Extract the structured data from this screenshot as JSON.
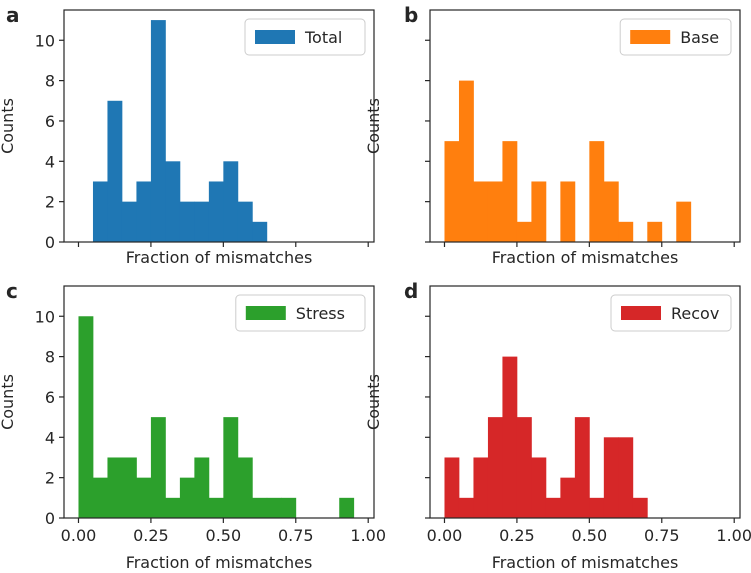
{
  "figure": {
    "shared_ylabel": "Counts",
    "shared_xlabel": "Fraction of mismatches"
  },
  "chart_data": [
    {
      "panel": "a",
      "type": "bar",
      "title": "",
      "legend": "Total",
      "legend_position": "top-right",
      "color": "#1f77b4",
      "xlabel": "Fraction of mismatches",
      "ylabel": "Counts",
      "xlim": [
        -0.05,
        1.02
      ],
      "ylim": [
        0,
        11.5
      ],
      "xticks": [
        0.0,
        0.25,
        0.5,
        0.75,
        1.0
      ],
      "xtick_labels": [],
      "yticks": [
        0,
        2,
        4,
        6,
        8,
        10
      ],
      "ytick_labels": [
        "0",
        "2",
        "4",
        "6",
        "8",
        "10"
      ],
      "bin_width": 0.05,
      "bin_starts": [
        0.05,
        0.1,
        0.15,
        0.2,
        0.25,
        0.3,
        0.35,
        0.4,
        0.45,
        0.5,
        0.55,
        0.6
      ],
      "values": [
        3,
        7,
        2,
        3,
        11,
        4,
        2,
        2,
        3,
        4,
        2,
        1
      ]
    },
    {
      "panel": "b",
      "type": "bar",
      "title": "",
      "legend": "Base",
      "legend_position": "top-right",
      "color": "#ff7f0e",
      "xlabel": "Fraction of mismatches",
      "ylabel": "Counts",
      "xlim": [
        -0.05,
        1.02
      ],
      "ylim": [
        0,
        11.5
      ],
      "xticks": [
        0.0,
        0.25,
        0.5,
        0.75,
        1.0
      ],
      "xtick_labels": [],
      "yticks": [
        0,
        2,
        4,
        6,
        8,
        10
      ],
      "ytick_labels": [],
      "bin_width": 0.05,
      "bin_starts": [
        0.0,
        0.05,
        0.1,
        0.15,
        0.2,
        0.25,
        0.3,
        0.35,
        0.4,
        0.45,
        0.5,
        0.55,
        0.6,
        0.65,
        0.7,
        0.75,
        0.8
      ],
      "values": [
        5,
        8,
        3,
        3,
        5,
        1,
        3,
        0,
        3,
        0,
        5,
        3,
        1,
        0,
        1,
        0,
        2
      ]
    },
    {
      "panel": "c",
      "type": "bar",
      "title": "",
      "legend": "Stress",
      "legend_position": "top-right",
      "color": "#2ca02c",
      "xlabel": "Fraction of mismatches",
      "ylabel": "Counts",
      "xlim": [
        -0.05,
        1.02
      ],
      "ylim": [
        0,
        11.5
      ],
      "xticks": [
        0.0,
        0.25,
        0.5,
        0.75,
        1.0
      ],
      "xtick_labels": [
        "0.00",
        "0.25",
        "0.50",
        "0.75",
        "1.00"
      ],
      "yticks": [
        0,
        2,
        4,
        6,
        8,
        10
      ],
      "ytick_labels": [
        "0",
        "2",
        "4",
        "6",
        "8",
        "10"
      ],
      "bin_width": 0.05,
      "bin_starts": [
        0.0,
        0.05,
        0.1,
        0.15,
        0.2,
        0.25,
        0.3,
        0.35,
        0.4,
        0.45,
        0.5,
        0.55,
        0.6,
        0.65,
        0.7,
        0.75,
        0.8,
        0.85,
        0.9
      ],
      "values": [
        10,
        2,
        3,
        3,
        2,
        5,
        1,
        2,
        3,
        1,
        5,
        3,
        1,
        1,
        1,
        0,
        0,
        0,
        1
      ]
    },
    {
      "panel": "d",
      "type": "bar",
      "title": "",
      "legend": "Recov",
      "legend_position": "top-right",
      "color": "#d62728",
      "xlabel": "Fraction of mismatches",
      "ylabel": "Counts",
      "xlim": [
        -0.05,
        1.02
      ],
      "ylim": [
        0,
        11.5
      ],
      "xticks": [
        0.0,
        0.25,
        0.5,
        0.75,
        1.0
      ],
      "xtick_labels": [
        "0.00",
        "0.25",
        "0.50",
        "0.75",
        "1.00"
      ],
      "yticks": [
        0,
        2,
        4,
        6,
        8,
        10
      ],
      "ytick_labels": [],
      "bin_width": 0.05,
      "bin_starts": [
        0.0,
        0.05,
        0.1,
        0.15,
        0.2,
        0.25,
        0.3,
        0.35,
        0.4,
        0.45,
        0.5,
        0.55,
        0.6,
        0.65
      ],
      "values": [
        3,
        1,
        3,
        5,
        8,
        5,
        3,
        1,
        2,
        5,
        1,
        4,
        4,
        1
      ]
    }
  ]
}
